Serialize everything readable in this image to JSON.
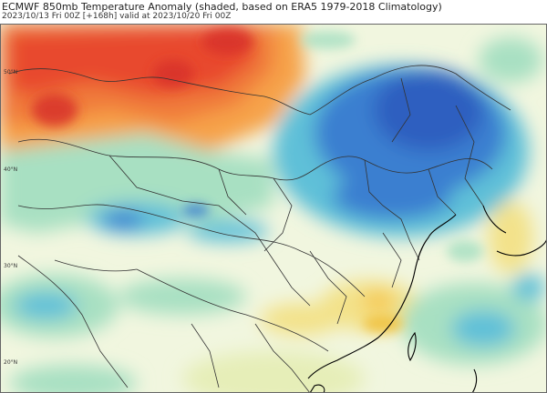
{
  "header": {
    "title": "ECMWF 850mb Temperature Anomaly (shaded, based on ERA5 1979-2018 Climatology)",
    "subtitle": "2023/10/13 Fri 00Z [+168h] valid at 2023/10/20 Fri 00Z"
  },
  "map": {
    "latitude_labels": [
      "50°N",
      "40°N",
      "30°N",
      "20°N"
    ],
    "anomaly_colors": {
      "strong_warm": "#e8492d",
      "warm": "#f07a3a",
      "mild_warm": "#f6a24a",
      "slight_warm": "#f3e28a",
      "neutral_light": "#f1f6df",
      "slight_cold": "#a8e0c2",
      "cold": "#5fc0d8",
      "strong_cold": "#3a7fd0",
      "very_cold": "#2f5fc0"
    },
    "boundary_color": "#333333",
    "coastline_color": "#000000"
  }
}
